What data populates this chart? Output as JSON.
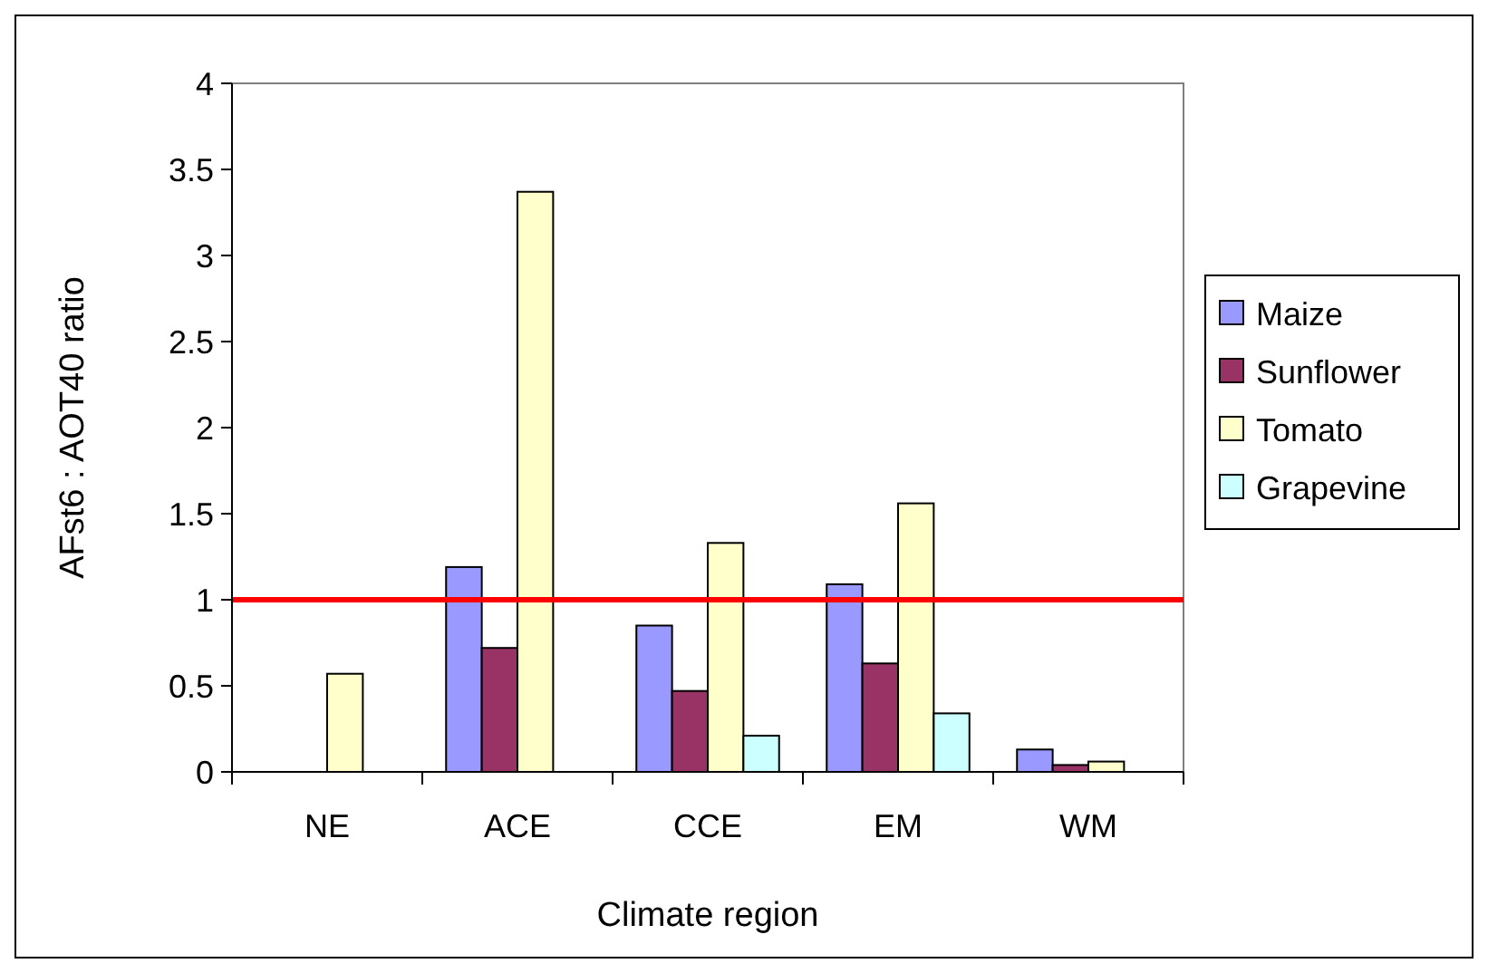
{
  "chart_data": {
    "type": "bar",
    "xlabel": "Climate region",
    "ylabel": "AFst6 : AOT40 ratio",
    "categories": [
      "NE",
      "ACE",
      "CCE",
      "EM",
      "WM"
    ],
    "series": [
      {
        "name": "Maize",
        "color": "#9999ff",
        "values": [
          null,
          1.19,
          0.85,
          1.09,
          0.13
        ]
      },
      {
        "name": "Sunflower",
        "color": "#993366",
        "values": [
          null,
          0.72,
          0.47,
          0.63,
          0.04
        ]
      },
      {
        "name": "Tomato",
        "color": "#ffffcc",
        "values": [
          0.57,
          3.37,
          1.33,
          1.56,
          0.06
        ]
      },
      {
        "name": "Grapevine",
        "color": "#ccffff",
        "values": [
          null,
          null,
          0.21,
          0.34,
          null
        ]
      }
    ],
    "ylim": [
      0,
      4
    ],
    "yticks": [
      0,
      0.5,
      1,
      1.5,
      2,
      2.5,
      3,
      3.5,
      4
    ],
    "grid": false,
    "legend": "right",
    "ref_lines": [
      {
        "axis": "y",
        "value": 1,
        "color": "#ff0000"
      }
    ]
  }
}
